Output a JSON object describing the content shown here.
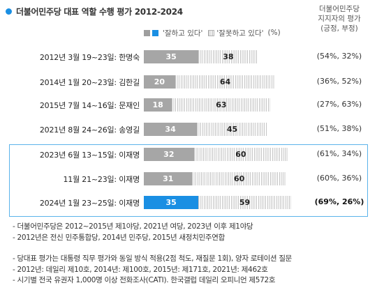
{
  "header": {
    "title": "더불어민주당 대표 역할 수행 평가 2012-2024",
    "right_header": [
      "더불어민주당",
      "지지자의 평가",
      "(긍정, 부정)"
    ]
  },
  "legend": {
    "positive": "'잘하고 있다'",
    "negative": "'잘못하고 있다'",
    "unit": "(%)"
  },
  "colors": {
    "positive": "#a6a6a6",
    "highlight": "#1a8fe3",
    "negative_hatch": "#c4c4c4",
    "frame": "#5bb3ea"
  },
  "chart_data": {
    "type": "bar",
    "orientation": "horizontal-stacked",
    "title": "더불어민주당 대표 역할 수행 평가 2012-2024",
    "categories": [
      "2012년 3월 19~23일: 한명숙",
      "2014년 1월 20~23일: 김한길",
      "2015년 7월 14~16일: 문재인",
      "2021년 8월 24~26일: 송영길",
      "2023년 6월 13~15일: 이재명",
      "11월 21~23일: 이재명",
      "2024년 1월 23~25일: 이재명"
    ],
    "series": [
      {
        "name": "'잘하고 있다'",
        "values": [
          35,
          20,
          18,
          34,
          32,
          31,
          35
        ]
      },
      {
        "name": "'잘못하고 있다'",
        "values": [
          38,
          64,
          63,
          45,
          60,
          60,
          59
        ]
      }
    ],
    "supporter_eval": [
      "(54%, 32%)",
      "(36%, 52%)",
      "(27%, 63%)",
      "(51%, 38%)",
      "(61%, 34%)",
      "(60%, 36%)",
      "(69%, 26%)"
    ],
    "highlight_index": 6,
    "xlim": [
      0,
      100
    ]
  },
  "notes": [
    "- 더불어민주당은 2012~2015년 제1야당, 2021년 여당, 2023년 이후 제1야당",
    "- 2012년은 전신 민주통합당, 2014년 민주당, 2015년 새정치민주연합",
    "- 당대표 평가는 대통령 직무 평가와 동일 방식 적용(2점 척도, 재질문 1회), 양자 로테이션 질문",
    "- 2012년: 데일리 제10호, 2014년: 제100호, 2015년: 제171호, 2021년: 제462호",
    "- 시기별 전국 유권자 1,000명 이상 전화조사(CATI). 한국갤럽 데일리 오피니언 제572호"
  ]
}
